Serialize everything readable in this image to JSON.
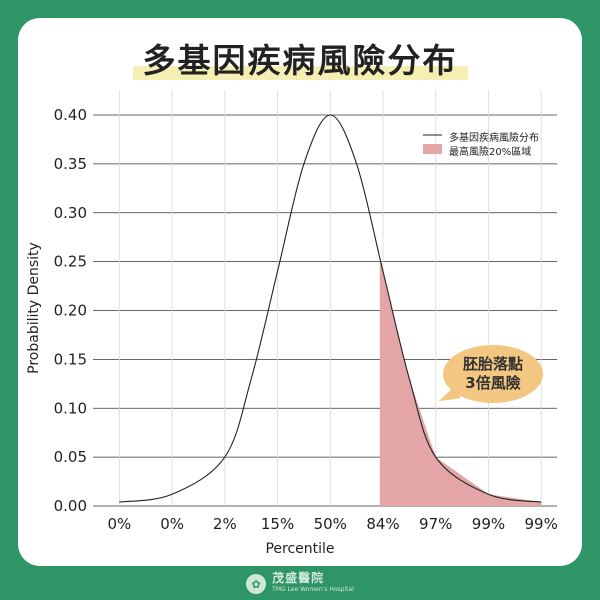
{
  "title": "多基因疾病風險分布",
  "chart_data": {
    "type": "area",
    "title": "多基因疾病風險分布",
    "xlabel": "Percentile",
    "ylabel": "Probability Density",
    "ylim": [
      0,
      0.4
    ],
    "yticks": [
      "0.00",
      "0.05",
      "0.10",
      "0.15",
      "0.20",
      "0.25",
      "0.30",
      "0.35",
      "0.40"
    ],
    "xticks": [
      "0%",
      "0%",
      "2%",
      "15%",
      "50%",
      "84%",
      "97%",
      "99%",
      "99%"
    ],
    "grid": "horizontal",
    "legend_position": "top-right",
    "series": [
      {
        "name": "多基因疾病風險分布",
        "color": "#222222",
        "x": [
          -4,
          -3,
          -2,
          -1.5,
          -1,
          -0.5,
          0,
          0.5,
          1,
          1.5,
          2,
          3,
          4
        ],
        "values": [
          0.004,
          0.012,
          0.05,
          0.13,
          0.24,
          0.35,
          0.4,
          0.35,
          0.24,
          0.13,
          0.05,
          0.012,
          0.004
        ]
      },
      {
        "name": "最高風險20%區域",
        "color": "#e3a5a6",
        "x_range": [
          0.94,
          4
        ]
      }
    ]
  },
  "legend": {
    "line": "多基因疾病風險分布",
    "area": "最高風險20%區域"
  },
  "callout": {
    "line1": "胚胎落點",
    "line2": "3倍風險"
  },
  "footer": {
    "brand": "茂盛醫院",
    "sub": "TMG Lee Women's Hospital"
  },
  "colors": {
    "background": "#2f9466",
    "highlight": "#f6efb4",
    "callout": "#f3c781",
    "area": "#e3a5a6"
  }
}
